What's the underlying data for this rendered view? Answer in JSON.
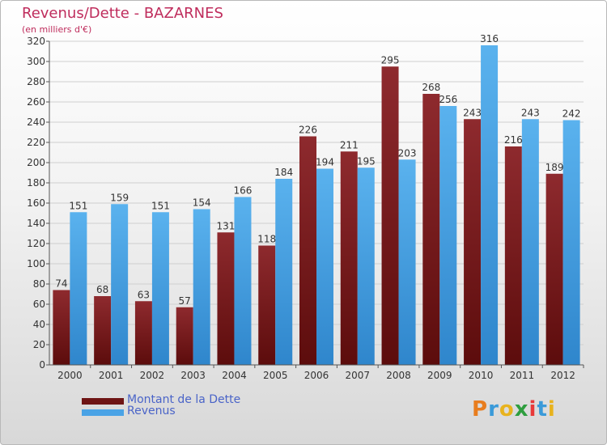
{
  "header": {
    "title": "Revenus/Dette - BAZARNES",
    "subtitle": "(en milliers d'€)"
  },
  "colors": {
    "title": "#bf2c5c",
    "dette": "#7a1e1e",
    "revenus": "#4aa3e6",
    "legend_text": "#4a64c8",
    "axis_text": "#333333",
    "grid": "#cfcfcf"
  },
  "chart_data": {
    "type": "bar",
    "categories": [
      "2000",
      "2001",
      "2002",
      "2003",
      "2004",
      "2005",
      "2006",
      "2007",
      "2008",
      "2009",
      "2010",
      "2011",
      "2012"
    ],
    "series": [
      {
        "name": "Montant de la Dette",
        "values": [
          74,
          68,
          63,
          57,
          131,
          118,
          226,
          211,
          295,
          268,
          243,
          216,
          189
        ]
      },
      {
        "name": "Revenus",
        "values": [
          151,
          159,
          151,
          154,
          166,
          184,
          194,
          195,
          203,
          256,
          316,
          243,
          242
        ]
      }
    ],
    "ylim": [
      0,
      320
    ],
    "yticks": [
      0,
      20,
      40,
      60,
      80,
      100,
      120,
      140,
      160,
      180,
      200,
      220,
      240,
      260,
      280,
      300,
      320
    ],
    "grid": true,
    "legend_position": "bottom-left"
  },
  "legend": {
    "items": [
      {
        "label": "Montant de la Dette",
        "color": "#7a1e1e"
      },
      {
        "label": "Revenus",
        "color": "#4aa3e6"
      }
    ]
  },
  "logo": {
    "letters": [
      "P",
      "r",
      "o",
      "x",
      "i",
      "t",
      "i"
    ],
    "colors": [
      "#e87d1e",
      "#3a9ad9",
      "#e8b31e",
      "#2f9e3f",
      "#e83a3a",
      "#3a9ad9",
      "#e8b31e"
    ]
  }
}
